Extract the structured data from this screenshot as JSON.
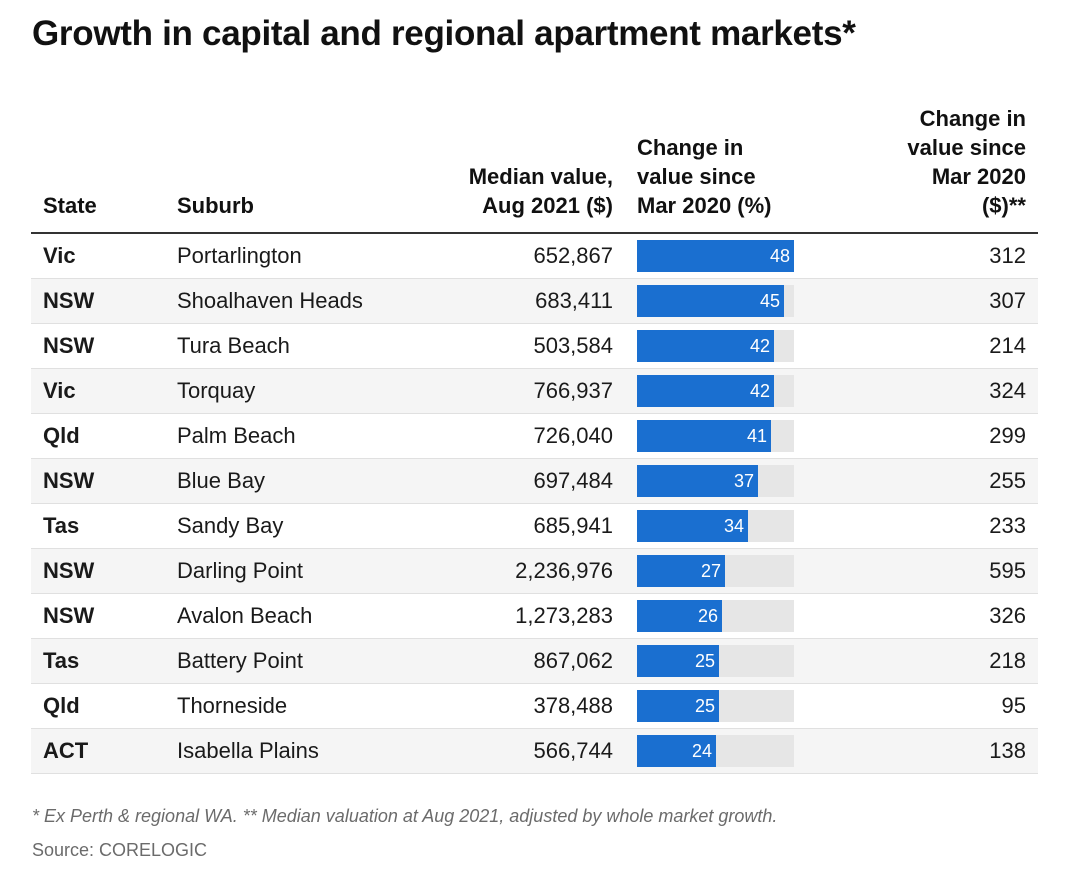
{
  "title": "Growth in capital and regional apartment markets*",
  "chart_data": {
    "type": "table",
    "title": "Growth in capital and regional apartment markets*",
    "columns": [
      "State",
      "Suburb",
      "Median value, Aug 2021 ($)",
      "Change in value since Mar 2020 (%)",
      "Change in value since Mar 2020 ($)**"
    ],
    "bar_max": 48,
    "rows": [
      {
        "state": "Vic",
        "suburb": "Portarlington",
        "median": "652,867",
        "pct": 48,
        "change": "312"
      },
      {
        "state": "NSW",
        "suburb": "Shoalhaven Heads",
        "median": "683,411",
        "pct": 45,
        "change": "307"
      },
      {
        "state": "NSW",
        "suburb": "Tura Beach",
        "median": "503,584",
        "pct": 42,
        "change": "214"
      },
      {
        "state": "Vic",
        "suburb": "Torquay",
        "median": "766,937",
        "pct": 42,
        "change": "324"
      },
      {
        "state": "Qld",
        "suburb": "Palm Beach",
        "median": "726,040",
        "pct": 41,
        "change": "299"
      },
      {
        "state": "NSW",
        "suburb": "Blue Bay",
        "median": "697,484",
        "pct": 37,
        "change": "255"
      },
      {
        "state": "Tas",
        "suburb": "Sandy Bay",
        "median": "685,941",
        "pct": 34,
        "change": "233"
      },
      {
        "state": "NSW",
        "suburb": "Darling Point",
        "median": "2,236,976",
        "pct": 27,
        "change": "595"
      },
      {
        "state": "NSW",
        "suburb": "Avalon Beach",
        "median": "1,273,283",
        "pct": 26,
        "change": "326"
      },
      {
        "state": "Tas",
        "suburb": "Battery Point",
        "median": "867,062",
        "pct": 25,
        "change": "218"
      },
      {
        "state": "Qld",
        "suburb": "Thorneside",
        "median": "378,488",
        "pct": 25,
        "change": "95"
      },
      {
        "state": "ACT",
        "suburb": "Isabella Plains",
        "median": "566,744",
        "pct": 24,
        "change": "138"
      }
    ]
  },
  "header": {
    "state": "State",
    "suburb": "Suburb",
    "median_line1": "Median value,",
    "median_line2": "Aug 2021 ($)",
    "pct_line1": "Change in",
    "pct_line2": "value since",
    "pct_line3": "Mar 2020 (%)",
    "change_line1": "Change in",
    "change_line2": "value since",
    "change_line3": "Mar 2020",
    "change_line4": "($)**"
  },
  "footnote": "* Ex Perth & regional WA. ** Median valuation at Aug 2021, adjusted by whole market growth.",
  "source": "Source: CORELOGIC",
  "colors": {
    "bar": "#1a6fd0",
    "bar_track": "#e6e6e6",
    "row_alt": "#f5f5f5"
  }
}
